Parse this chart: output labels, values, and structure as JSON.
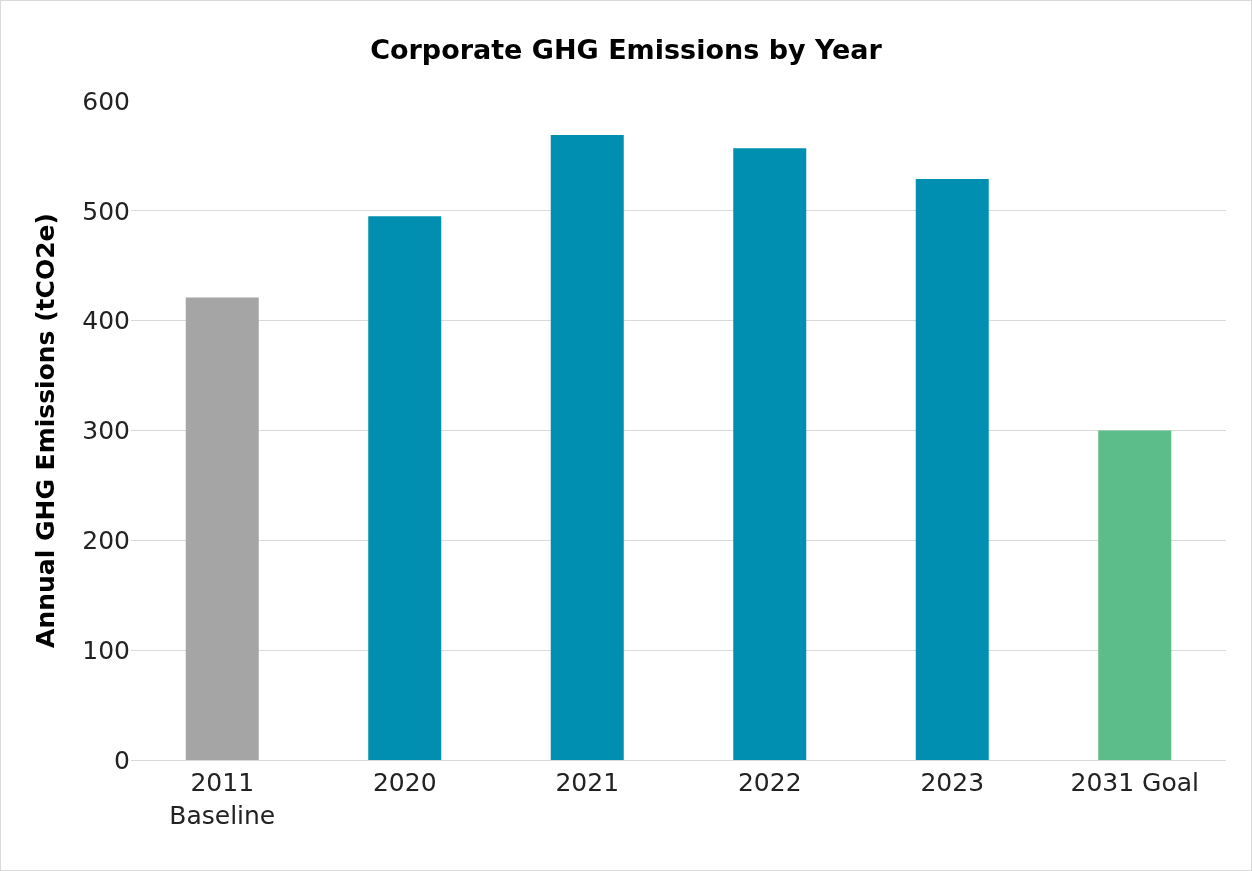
{
  "chart_data": {
    "type": "bar",
    "title": "Corporate GHG Emissions by Year",
    "ylabel": "Annual GHG Emissions (tCO2e)",
    "categories": [
      "2011\nBaseline",
      "2020",
      "2021",
      "2022",
      "2023",
      "2031 Goal"
    ],
    "values": [
      421,
      495,
      569,
      557,
      529,
      300
    ],
    "colors": [
      "#a5a5a5",
      "#008fb0",
      "#008fb0",
      "#008fb0",
      "#008fb0",
      "#5cbd8a"
    ],
    "ylim": [
      0,
      600
    ],
    "yticks": [
      0,
      100,
      200,
      300,
      400,
      500,
      600
    ],
    "grid": "y"
  }
}
